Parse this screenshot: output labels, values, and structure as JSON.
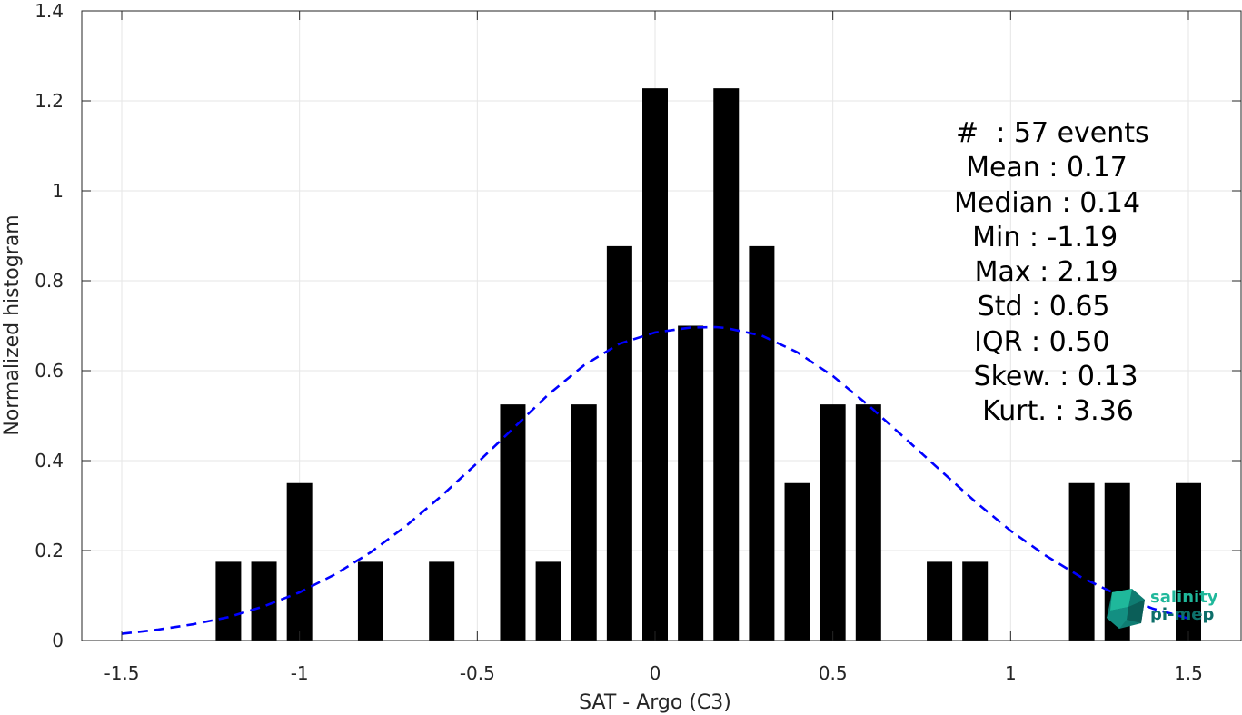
{
  "chart_data": {
    "type": "bar",
    "xlabel": "SAT - Argo (C3)",
    "ylabel": "Normalized histogram",
    "xlim": [
      -1.6,
      1.6
    ],
    "ylim": [
      0,
      1.4
    ],
    "xticks": [
      -1.5,
      -1,
      -0.5,
      0,
      0.5,
      1,
      1.5
    ],
    "xtick_labels": [
      "-1.5",
      "-1",
      "-0.5",
      "0",
      "0.5",
      "1",
      "1.5"
    ],
    "yticks": [
      0,
      0.2,
      0.4,
      0.6,
      0.8,
      1,
      1.2,
      1.4
    ],
    "ytick_labels": [
      "0",
      "0.2",
      "0.4",
      "0.6",
      "0.8",
      "1",
      "1.2",
      "1.4"
    ],
    "grid": true,
    "bar_color": "#000000",
    "bars": {
      "x": [
        -1.2,
        -1.1,
        -1.0,
        -0.8,
        -0.6,
        -0.4,
        -0.3,
        -0.2,
        -0.1,
        0.0,
        0.1,
        0.2,
        0.3,
        0.4,
        0.5,
        0.6,
        0.8,
        0.9,
        1.2,
        1.3,
        1.5
      ],
      "values": [
        0.175,
        0.175,
        0.35,
        0.175,
        0.175,
        0.525,
        0.175,
        0.525,
        0.877,
        1.228,
        0.7,
        1.228,
        0.877,
        0.35,
        0.525,
        0.525,
        0.175,
        0.175,
        0.35,
        0.35,
        0.35
      ]
    },
    "fit_curve": {
      "style": "dashed",
      "color": "#0000ff",
      "x": [
        -1.5,
        -1.4,
        -1.3,
        -1.2,
        -1.1,
        -1.0,
        -0.9,
        -0.8,
        -0.7,
        -0.6,
        -0.5,
        -0.4,
        -0.3,
        -0.2,
        -0.1,
        0.0,
        0.1,
        0.17,
        0.2,
        0.3,
        0.4,
        0.5,
        0.6,
        0.7,
        0.8,
        0.9,
        1.0,
        1.1,
        1.2,
        1.3,
        1.4,
        1.5
      ],
      "values": [
        0.015,
        0.024,
        0.036,
        0.052,
        0.076,
        0.107,
        0.147,
        0.196,
        0.255,
        0.322,
        0.395,
        0.471,
        0.547,
        0.612,
        0.66,
        0.685,
        0.696,
        0.697,
        0.695,
        0.678,
        0.641,
        0.588,
        0.523,
        0.452,
        0.38,
        0.309,
        0.244,
        0.188,
        0.14,
        0.102,
        0.071,
        0.049
      ]
    },
    "stats": [
      "#  : 57 events",
      "  Mean : 0.17",
      "Median : 0.14",
      "    Min : -1.19",
      "   Max : 2.19",
      "     Std : 0.65",
      "    IQR : 0.50",
      " Skew. : 0.13",
      "  Kurt. : 3.36"
    ]
  },
  "logo": {
    "line1": "salinity",
    "line2": "pi-mep",
    "color1": "#1fb89b",
    "color2": "#0d6f6a"
  }
}
